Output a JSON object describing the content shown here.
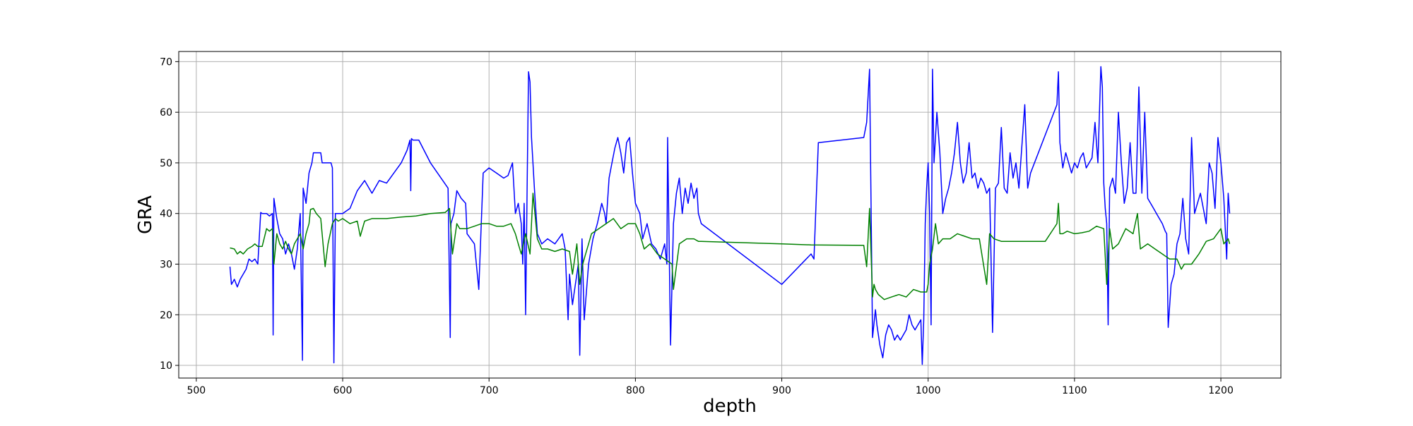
{
  "chart_data": {
    "type": "line",
    "title": "",
    "xlabel": "depth",
    "ylabel": "GRA",
    "xlim": [
      488,
      1241
    ],
    "ylim": [
      7.5,
      72
    ],
    "grid": true,
    "legend": "none",
    "xticks": [
      500,
      600,
      700,
      800,
      900,
      1000,
      1100,
      1200
    ],
    "yticks": [
      10,
      20,
      30,
      40,
      50,
      60,
      70
    ],
    "series": [
      {
        "color": "#0000ff",
        "x": [
          523,
          524,
          526,
          528,
          530,
          532,
          534,
          536,
          538,
          540,
          542,
          544,
          545,
          548,
          550,
          552,
          552.5,
          553,
          555,
          557,
          559,
          561,
          563,
          565,
          567,
          569,
          571,
          572.5,
          573,
          575,
          577,
          579,
          580,
          585,
          586,
          588,
          590,
          592,
          593,
          594,
          594.5,
          595,
          597,
          600,
          605,
          610,
          615,
          620,
          625,
          630,
          635,
          640,
          644,
          646,
          646.5,
          647,
          648,
          652,
          660,
          672,
          673.5,
          674,
          676,
          678,
          681,
          684,
          685,
          690,
          693,
          696,
          700,
          705,
          710,
          713,
          716,
          718,
          720,
          722,
          723,
          724,
          725,
          726,
          727,
          728,
          729,
          731,
          733,
          736,
          740,
          745,
          750,
          752,
          754,
          755,
          757,
          759,
          761,
          762,
          763.5,
          765,
          768,
          771,
          774,
          777,
          779,
          780,
          782,
          784,
          786,
          788,
          790,
          792,
          794,
          796,
          798,
          800,
          803,
          805,
          808,
          811,
          814,
          817,
          820,
          821.5,
          822,
          824,
          826,
          828,
          830,
          832,
          834,
          836,
          838,
          840,
          842,
          843,
          845,
          900,
          920,
          922,
          925,
          956,
          958,
          960,
          962,
          964,
          965,
          967,
          969,
          971,
          973,
          975,
          977,
          979,
          981,
          983,
          985,
          987,
          989,
          991,
          993,
          995,
          996,
          997,
          998,
          999,
          1000,
          1001,
          1002,
          1003,
          1004,
          1005,
          1006,
          1008,
          1010,
          1012,
          1014,
          1016,
          1018,
          1020,
          1022,
          1024,
          1026,
          1028,
          1030,
          1032,
          1034,
          1036,
          1038,
          1040,
          1042,
          1044,
          1046,
          1048,
          1050,
          1052,
          1054,
          1056,
          1058,
          1060,
          1062,
          1066,
          1068,
          1070,
          1088,
          1089,
          1090,
          1092,
          1094,
          1096,
          1098,
          1100,
          1102,
          1104,
          1106,
          1108,
          1110,
          1112,
          1114,
          1116,
          1118,
          1119,
          1120,
          1121,
          1122,
          1123,
          1124,
          1126,
          1128,
          1130,
          1132,
          1134,
          1136,
          1138,
          1140,
          1142,
          1144,
          1146,
          1148,
          1150,
          1152,
          1154,
          1156,
          1158,
          1160,
          1162,
          1163,
          1164,
          1166,
          1168,
          1170,
          1172,
          1174,
          1176,
          1178,
          1180,
          1182,
          1184,
          1186,
          1188,
          1190,
          1192,
          1194,
          1196,
          1198,
          1200,
          1202,
          1204,
          1205,
          1206
        ],
        "y": [
          29.5,
          26,
          27,
          25.5,
          27,
          28,
          29,
          31,
          30.5,
          31,
          30,
          40.2,
          40,
          40,
          39.5,
          40,
          16,
          43,
          39,
          36,
          35,
          32,
          34,
          32,
          29,
          33,
          40,
          11,
          45,
          42,
          48,
          50,
          52,
          52,
          50,
          50,
          50,
          50,
          49,
          10.5,
          25,
          40,
          40,
          40,
          41,
          44.5,
          46.5,
          44,
          46.5,
          46,
          48,
          50,
          52.5,
          54.5,
          44.5,
          54.8,
          54.5,
          54.5,
          50,
          45,
          15.5,
          38,
          40,
          44.5,
          43,
          42,
          36,
          34,
          25,
          48,
          49,
          48,
          47,
          47.5,
          50,
          40,
          42,
          38,
          30,
          42,
          20,
          45,
          68,
          66,
          55,
          45,
          36,
          34,
          35,
          34,
          36,
          33,
          19,
          28,
          22,
          26,
          30,
          12,
          35,
          19,
          30,
          35,
          38,
          42,
          40,
          38,
          47,
          50,
          53,
          55,
          52,
          48,
          54,
          55,
          48,
          42,
          40,
          35,
          38,
          34,
          33,
          31,
          34,
          30,
          55,
          14,
          38,
          44,
          47,
          40,
          45,
          42,
          46,
          43,
          45,
          40,
          38,
          26,
          32,
          31,
          54,
          55,
          58,
          68.5,
          15.5,
          21,
          18,
          14,
          11.5,
          16,
          18,
          17,
          15,
          16,
          15,
          16,
          17,
          20,
          18,
          17,
          18,
          19,
          10.2,
          19,
          38,
          45,
          50,
          40,
          18,
          68.5,
          50,
          55,
          60,
          52,
          40,
          43,
          45,
          48,
          52,
          58,
          50,
          46,
          48,
          54,
          47,
          48,
          45,
          47,
          46,
          44,
          45,
          16.5,
          45,
          46,
          57,
          45,
          44,
          52,
          47,
          50,
          45,
          61.5,
          45,
          48,
          61.5,
          68,
          54,
          49,
          52,
          50,
          48,
          50,
          49,
          51,
          52,
          49,
          50,
          51,
          58,
          50,
          69,
          65,
          46,
          41,
          38,
          18,
          45,
          47,
          44,
          60,
          50,
          42,
          45,
          54,
          44,
          44,
          65,
          44,
          60,
          43,
          42,
          41,
          40,
          39,
          38,
          36.5,
          36,
          17.5,
          26,
          28,
          34,
          36,
          43,
          35,
          32,
          55,
          40,
          42,
          44,
          41,
          38,
          50,
          48,
          41,
          55,
          50,
          43,
          31,
          44,
          40
        ]
      },
      {
        "color": "#008000",
        "x": [
          523,
          526,
          528,
          530,
          532,
          535,
          538,
          540,
          542,
          545,
          548,
          550,
          552,
          553,
          555,
          557,
          559,
          561,
          563,
          565,
          567,
          569,
          571,
          573,
          575,
          577,
          578,
          580,
          582,
          585,
          588,
          590,
          593,
          595,
          597,
          600,
          605,
          610,
          612,
          615,
          620,
          630,
          640,
          650,
          660,
          670,
          673,
          675,
          676,
          678,
          680,
          685,
          690,
          695,
          700,
          705,
          710,
          715,
          718,
          720,
          722,
          725,
          728,
          730,
          733,
          736,
          740,
          745,
          750,
          755,
          757,
          760,
          762,
          764,
          766,
          768,
          770,
          775,
          780,
          785,
          790,
          795,
          800,
          803,
          806,
          810,
          815,
          820,
          825,
          826,
          830,
          835,
          840,
          843,
          845,
          900,
          920,
          956,
          958,
          960,
          962,
          963,
          964,
          966,
          970,
          975,
          980,
          985,
          990,
          995,
          999,
          1000,
          1001,
          1003,
          1005,
          1007,
          1010,
          1015,
          1020,
          1025,
          1030,
          1035,
          1040,
          1042,
          1045,
          1050,
          1055,
          1060,
          1070,
          1080,
          1088,
          1089,
          1090,
          1092,
          1095,
          1100,
          1105,
          1110,
          1115,
          1120,
          1122,
          1124,
          1126,
          1130,
          1135,
          1140,
          1143,
          1145,
          1150,
          1155,
          1160,
          1165,
          1170,
          1173,
          1175,
          1180,
          1185,
          1190,
          1195,
          1200,
          1202,
          1205,
          1206
        ],
        "y": [
          33.2,
          33,
          32,
          32.5,
          32,
          33,
          33.5,
          34,
          33.5,
          33.5,
          37,
          36.5,
          37,
          30,
          36,
          34,
          33,
          34.5,
          33,
          32,
          34,
          35,
          36,
          33,
          36,
          38,
          40.8,
          41,
          40,
          39,
          29.5,
          34,
          38,
          39,
          38.5,
          39,
          38,
          38.5,
          35.5,
          38.5,
          39,
          39,
          39.3,
          39.5,
          40,
          40.2,
          41,
          32,
          34,
          38,
          37,
          37,
          37.5,
          38,
          38,
          37.5,
          37.5,
          38,
          36,
          34,
          32,
          36,
          32,
          44,
          35,
          33,
          33,
          32.5,
          33,
          32.5,
          28,
          34,
          26,
          30,
          32,
          34,
          36,
          37,
          38,
          39,
          37,
          38,
          38,
          36,
          33,
          34,
          32,
          31,
          30,
          25,
          34,
          35,
          35,
          34.5,
          34.5,
          34,
          33.8,
          33.7,
          29.5,
          41,
          23.5,
          26,
          25,
          24,
          23,
          23.5,
          24,
          23.5,
          25,
          24.5,
          24.5,
          26,
          30,
          33,
          38,
          34,
          35,
          35,
          36,
          35.5,
          35,
          35,
          26,
          36,
          35,
          34.5,
          34.5,
          34.5,
          34.5,
          34.5,
          38,
          42,
          36,
          36,
          36.5,
          36,
          36.2,
          36.5,
          37.5,
          37,
          26,
          37,
          33,
          34,
          37,
          36,
          40,
          33,
          34,
          33,
          32,
          31,
          31,
          29,
          30,
          30,
          32,
          34.5,
          35,
          37,
          34,
          35,
          34
        ]
      }
    ]
  }
}
